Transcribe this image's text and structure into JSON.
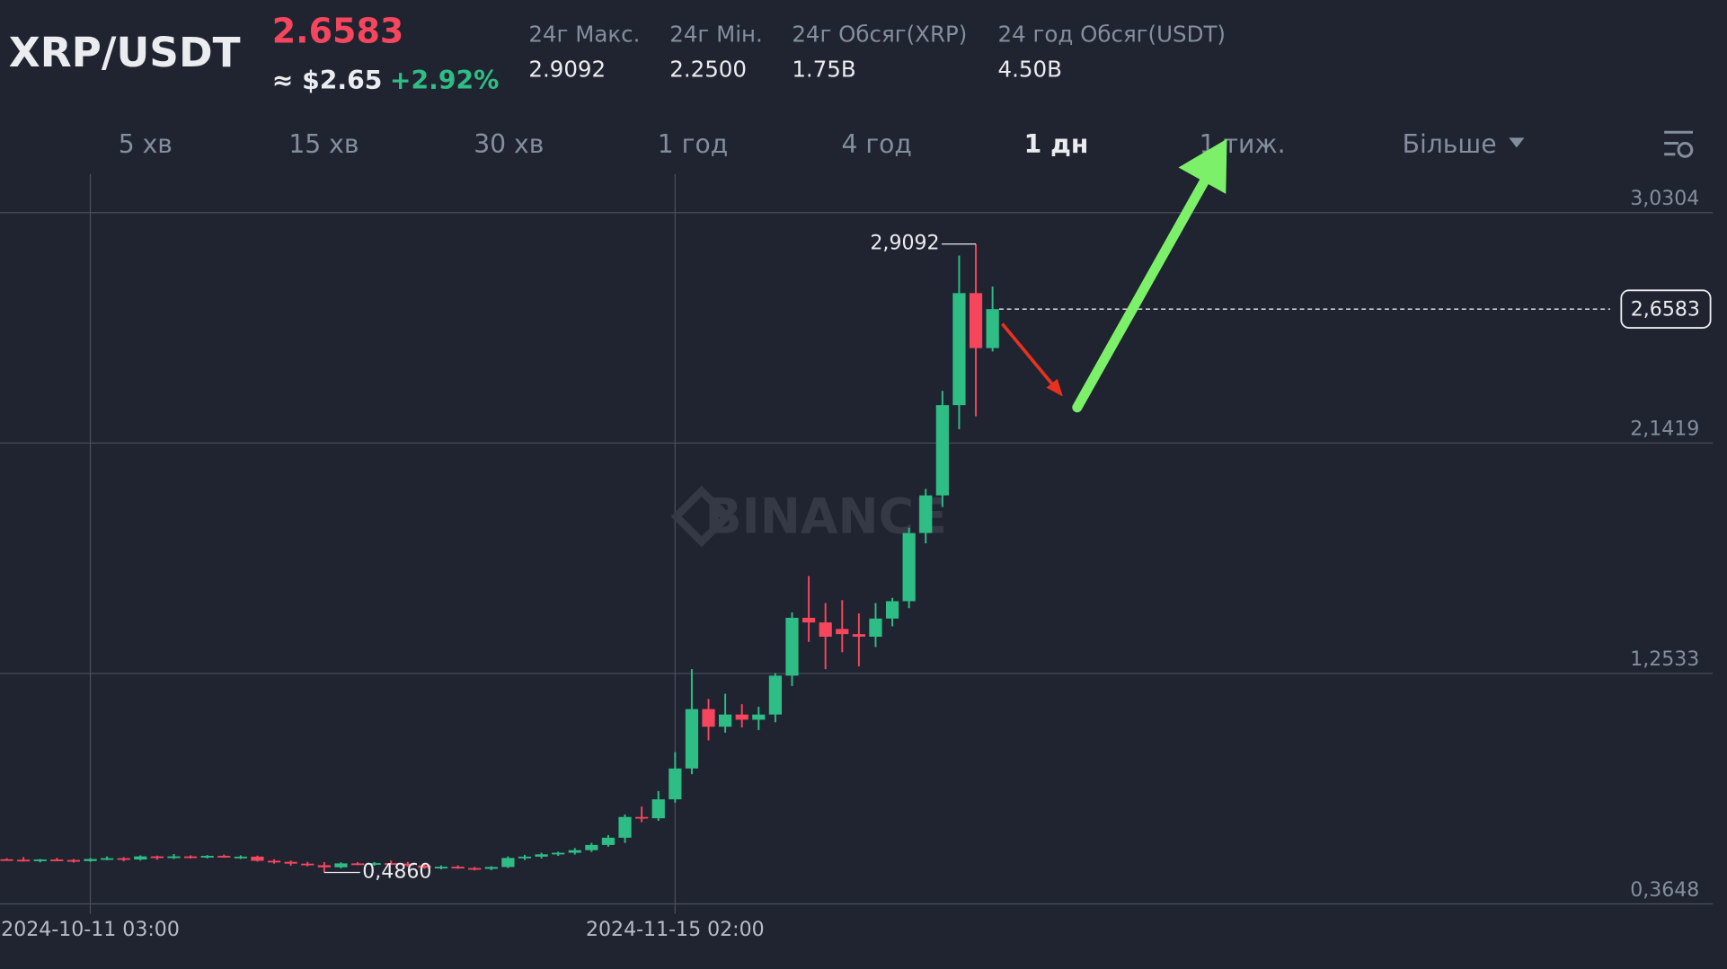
{
  "header": {
    "pair": "XRP/USDT",
    "price": "2.6583",
    "usd_price": "≈ $2.65",
    "change": "+2.92%",
    "stats": [
      {
        "label": "24г Макс.",
        "value": "2.9092"
      },
      {
        "label": "24г Мін.",
        "value": "2.2500"
      },
      {
        "label": "24г Обсяг(XRP)",
        "value": "1.75B"
      },
      {
        "label": "24 год Обсяг(USDT)",
        "value": "4.50B"
      }
    ]
  },
  "tabs": [
    "5 хв",
    "15 хв",
    "30 хв",
    "1 год",
    "4 год",
    "1 дн",
    "1 тиж.",
    "Більше"
  ],
  "chart_data": {
    "type": "candlestick",
    "watermark": "BINANCE",
    "up_color": "#2ebd85",
    "down_color": "#f6465d",
    "grid": true,
    "categories": [
      null,
      null,
      null,
      null,
      null,
      "2024-10-11 03:00",
      null,
      null,
      null,
      null,
      null,
      null,
      null,
      null,
      null,
      null,
      null,
      null,
      null,
      null,
      null,
      null,
      null,
      null,
      null,
      null,
      null,
      null,
      null,
      null,
      null,
      null,
      null,
      null,
      null,
      null,
      null,
      null,
      null,
      null,
      "2024-11-15 02:00",
      null,
      null,
      null,
      null,
      null,
      null,
      null,
      null,
      null,
      null,
      null,
      null,
      null,
      null,
      null,
      null,
      null,
      null,
      null
    ],
    "open": [
      0.537,
      0.535,
      0.532,
      0.536,
      0.534,
      0.53,
      0.538,
      0.541,
      0.536,
      0.548,
      0.542,
      0.548,
      0.545,
      0.55,
      0.546,
      0.547,
      0.531,
      0.527,
      0.52,
      0.514,
      0.506,
      0.521,
      0.518,
      0.522,
      0.52,
      0.513,
      0.504,
      0.508,
      0.503,
      0.5,
      0.507,
      0.542,
      0.547,
      0.556,
      0.562,
      0.572,
      0.592,
      0.62,
      0.7,
      0.695,
      0.768,
      0.887,
      1.116,
      1.048,
      1.095,
      1.075,
      1.095,
      1.245,
      1.468,
      1.45,
      1.425,
      1.405,
      1.395,
      1.465,
      1.532,
      1.795,
      1.94,
      2.288,
      2.72,
      2.508
    ],
    "high": [
      0.541,
      0.545,
      0.538,
      0.542,
      0.538,
      0.541,
      0.548,
      0.545,
      0.552,
      0.551,
      0.557,
      0.552,
      0.553,
      0.555,
      0.552,
      0.551,
      0.537,
      0.532,
      0.527,
      0.526,
      0.525,
      0.526,
      0.526,
      0.532,
      0.527,
      0.518,
      0.513,
      0.513,
      0.507,
      0.51,
      0.548,
      0.554,
      0.562,
      0.566,
      0.58,
      0.6,
      0.63,
      0.71,
      0.74,
      0.8,
      0.95,
      1.27,
      1.155,
      1.175,
      1.135,
      1.125,
      1.255,
      1.489,
      1.629,
      1.525,
      1.536,
      1.485,
      1.525,
      1.545,
      1.815,
      1.965,
      2.343,
      2.865,
      2.9092,
      2.745
    ],
    "low": [
      0.531,
      0.528,
      0.525,
      0.53,
      0.524,
      0.527,
      0.533,
      0.529,
      0.532,
      0.535,
      0.538,
      0.54,
      0.54,
      0.543,
      0.538,
      0.528,
      0.52,
      0.512,
      0.51,
      0.486,
      0.502,
      0.514,
      0.512,
      0.515,
      0.508,
      0.5,
      0.498,
      0.5,
      0.494,
      0.495,
      0.503,
      0.534,
      0.54,
      0.55,
      0.555,
      0.565,
      0.585,
      0.6,
      0.68,
      0.685,
      0.755,
      0.865,
      0.995,
      1.025,
      1.045,
      1.035,
      1.065,
      1.205,
      1.375,
      1.27,
      1.335,
      1.281,
      1.355,
      1.435,
      1.505,
      1.755,
      1.895,
      2.195,
      2.245,
      2.495
    ],
    "close": [
      0.535,
      0.532,
      0.536,
      0.534,
      0.53,
      0.538,
      0.541,
      0.536,
      0.548,
      0.542,
      0.548,
      0.545,
      0.55,
      0.546,
      0.547,
      0.531,
      0.527,
      0.52,
      0.514,
      0.506,
      0.521,
      0.518,
      0.522,
      0.52,
      0.513,
      0.504,
      0.508,
      0.503,
      0.5,
      0.507,
      0.542,
      0.547,
      0.556,
      0.562,
      0.572,
      0.592,
      0.62,
      0.7,
      0.695,
      0.768,
      0.887,
      1.116,
      1.048,
      1.095,
      1.075,
      1.095,
      1.245,
      1.468,
      1.45,
      1.395,
      1.405,
      1.395,
      1.465,
      1.532,
      1.795,
      1.94,
      2.288,
      2.72,
      2.508,
      2.6583
    ],
    "ylim": [
      0.3648,
      3.0304
    ],
    "yticks": [
      {
        "value": 3.0304,
        "label": "3,0304"
      },
      {
        "value": 2.1419,
        "label": "2,1419"
      },
      {
        "value": 1.2533,
        "label": "1,2533"
      },
      {
        "value": 0.3648,
        "label": "0,3648"
      }
    ],
    "last_price": {
      "value": 2.6583,
      "label": "2,6583"
    },
    "high_marker": {
      "value": 2.9092,
      "label": "2,9092"
    },
    "low_marker": {
      "value": 0.486,
      "label": "0,4860"
    }
  }
}
